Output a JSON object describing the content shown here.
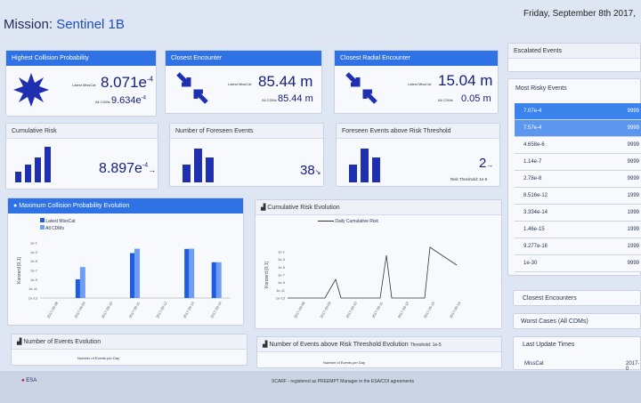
{
  "header": {
    "mission_label": "Mission:",
    "mission_name": "Sentinel 1B",
    "date": "Friday, September 8th 2017,"
  },
  "cards": {
    "highest_prob": {
      "title": "Highest Collision Probability",
      "latest_label": "Latest MissCat",
      "latest_value": "8.071e",
      "latest_exp": "-4",
      "all_label": "All CDMs",
      "all_value": "9.634e",
      "all_exp": "-4"
    },
    "closest_enc": {
      "title": "Closest Encounter",
      "latest_label": "Latest MissCat",
      "latest_value": "85.44 m",
      "all_label": "All CDMs",
      "all_value": "85.44 m"
    },
    "closest_rad": {
      "title": "Closest Radial Encounter",
      "latest_label": "Latest MissCat",
      "latest_value": "15.04 m",
      "all_label": "All CDMs",
      "all_value": "0.05 m"
    },
    "cumulative": {
      "title": "Cumulative Risk",
      "value": "8.897e",
      "exp": "-4",
      "arrow": "→"
    },
    "foreseen": {
      "title": "Number of Foreseen Events",
      "value": "38",
      "arrow": "↘"
    },
    "above": {
      "title": "Foreseen Events above Risk Threshold",
      "value": "2",
      "arrow": "→",
      "threshold_label": "Risk Threshold: 1e-5"
    }
  },
  "side": {
    "escalated": "Escalated Events",
    "most_risky": "Most Risky Events",
    "rows": [
      {
        "p": "7.07e-4",
        "v": "9999"
      },
      {
        "p": "7.57e-4",
        "v": "9999"
      },
      {
        "p": "4.658e-6",
        "v": "9999"
      },
      {
        "p": "1.14e-7",
        "v": "9999"
      },
      {
        "p": "2.78e-8",
        "v": "9999"
      },
      {
        "p": "8.516e-12",
        "v": "1999"
      },
      {
        "p": "3.334e-14",
        "v": "1999"
      },
      {
        "p": "1.46e-15",
        "v": "1999"
      },
      {
        "p": "9.277e-16",
        "v": "1999"
      },
      {
        "p": "1e-30",
        "v": "9999"
      }
    ],
    "closest": "Closest Encounters",
    "worst": "Worst Cases (All CDMs)",
    "last_update": "Last Update Times",
    "misscat": "MissCat",
    "misscat_val": "2017-0"
  },
  "charts": {
    "max_prob": {
      "title": "Maximum Collision Probability Evolution",
      "legend_latest": "Latest MissCat",
      "legend_all": "All CDMs",
      "ylabel": "Konzerd [0,1]"
    },
    "cum_risk": {
      "title": "Cumulative Risk Evolution",
      "legend": "Daily Cumulative Risk",
      "ylabel": "Konzerd [0,1]"
    },
    "num_events": {
      "title": "Number of Events Evolution",
      "sub": "Number of Events per Day"
    },
    "num_above": {
      "title": "Number of Events above Risk Threshold Evolution",
      "title_suffix": "Threshold: 1e-5",
      "sub": "Number of Events per Day"
    }
  },
  "chart_data": [
    {
      "type": "bar",
      "title": "Maximum Collision Probability Evolution",
      "categories": [
        "2017-09-08",
        "2017-09-09",
        "2017-09-10",
        "2017-09-11",
        "2017-09-12",
        "2017-09-13",
        "2017-09-14"
      ],
      "y_ticks": [
        "1e-1",
        "1e-3",
        "1e-5",
        "1e-7",
        "1e-9",
        "1e-11",
        "1e-13"
      ],
      "series": [
        {
          "name": "Latest MissCat",
          "values": [
            null,
            2e-10,
            null,
            0.0001,
            null,
            0.0008,
            1e-06
          ]
        },
        {
          "name": "All CDMs",
          "values": [
            null,
            9e-08,
            null,
            0.0009,
            null,
            0.0009,
            1e-06
          ]
        }
      ]
    },
    {
      "type": "line",
      "title": "Cumulative Risk Evolution",
      "series": [
        {
          "name": "Daily Cumulative Risk",
          "x": [
            "2017-09-08",
            "2017-09-09",
            "2017-09-10",
            "2017-09-11",
            "2017-09-12",
            "2017-09-13",
            "2017-09-14"
          ]
        }
      ],
      "y_ticks": [
        "1e-1",
        "1e-3",
        "1e-5",
        "1e-7",
        "1e-9",
        "1e-11",
        "1e-13"
      ]
    }
  ],
  "footer": {
    "brand1": "ESA",
    "text": "SCARF - registered as PREEMPT Manager in the ESA/COI agreements"
  }
}
